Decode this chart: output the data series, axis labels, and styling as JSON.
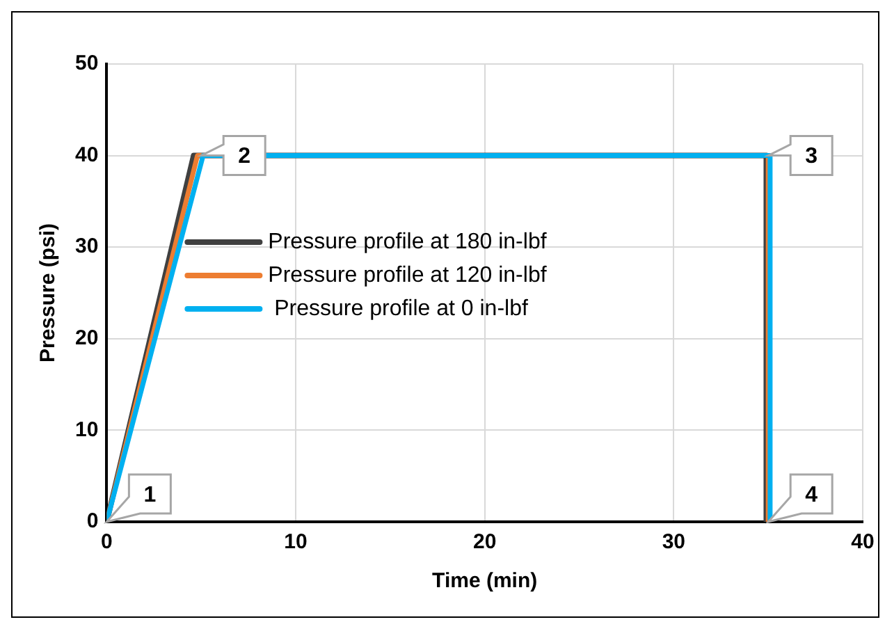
{
  "chart_data": {
    "type": "line",
    "xlabel": "Time (min)",
    "ylabel": "Pressure (psi)",
    "xlim": [
      0,
      40
    ],
    "xticks": [
      0,
      10,
      20,
      30,
      40
    ],
    "ylim": [
      0,
      50
    ],
    "yticks": [
      0,
      10,
      20,
      30,
      40,
      50
    ],
    "grid": true,
    "legend": "left",
    "marker": "none",
    "line_style": "solid",
    "series": [
      {
        "name": "Pressure profile at 180 in-lbf",
        "color": "#404040",
        "x": [
          0,
          4.6,
          34.9,
          34.9
        ],
        "values": [
          0,
          40,
          40,
          0
        ]
      },
      {
        "name": "Pressure profile at 120 in-lbf",
        "color": "#ed7d31",
        "x": [
          0,
          4.8,
          35,
          35
        ],
        "values": [
          0,
          40,
          40,
          0
        ]
      },
      {
        "name": " Pressure profile at 0 in-lbf",
        "color": "#00b0f0",
        "x": [
          0,
          5.1,
          35.1,
          35.1
        ],
        "values": [
          0,
          40,
          40,
          0
        ]
      }
    ],
    "annotations": [
      {
        "text": "1",
        "x": 0,
        "y": 0
      },
      {
        "text": "2",
        "x": 5,
        "y": 40
      },
      {
        "text": "3",
        "x": 35,
        "y": 40
      },
      {
        "text": "4",
        "x": 35,
        "y": 0
      }
    ]
  }
}
